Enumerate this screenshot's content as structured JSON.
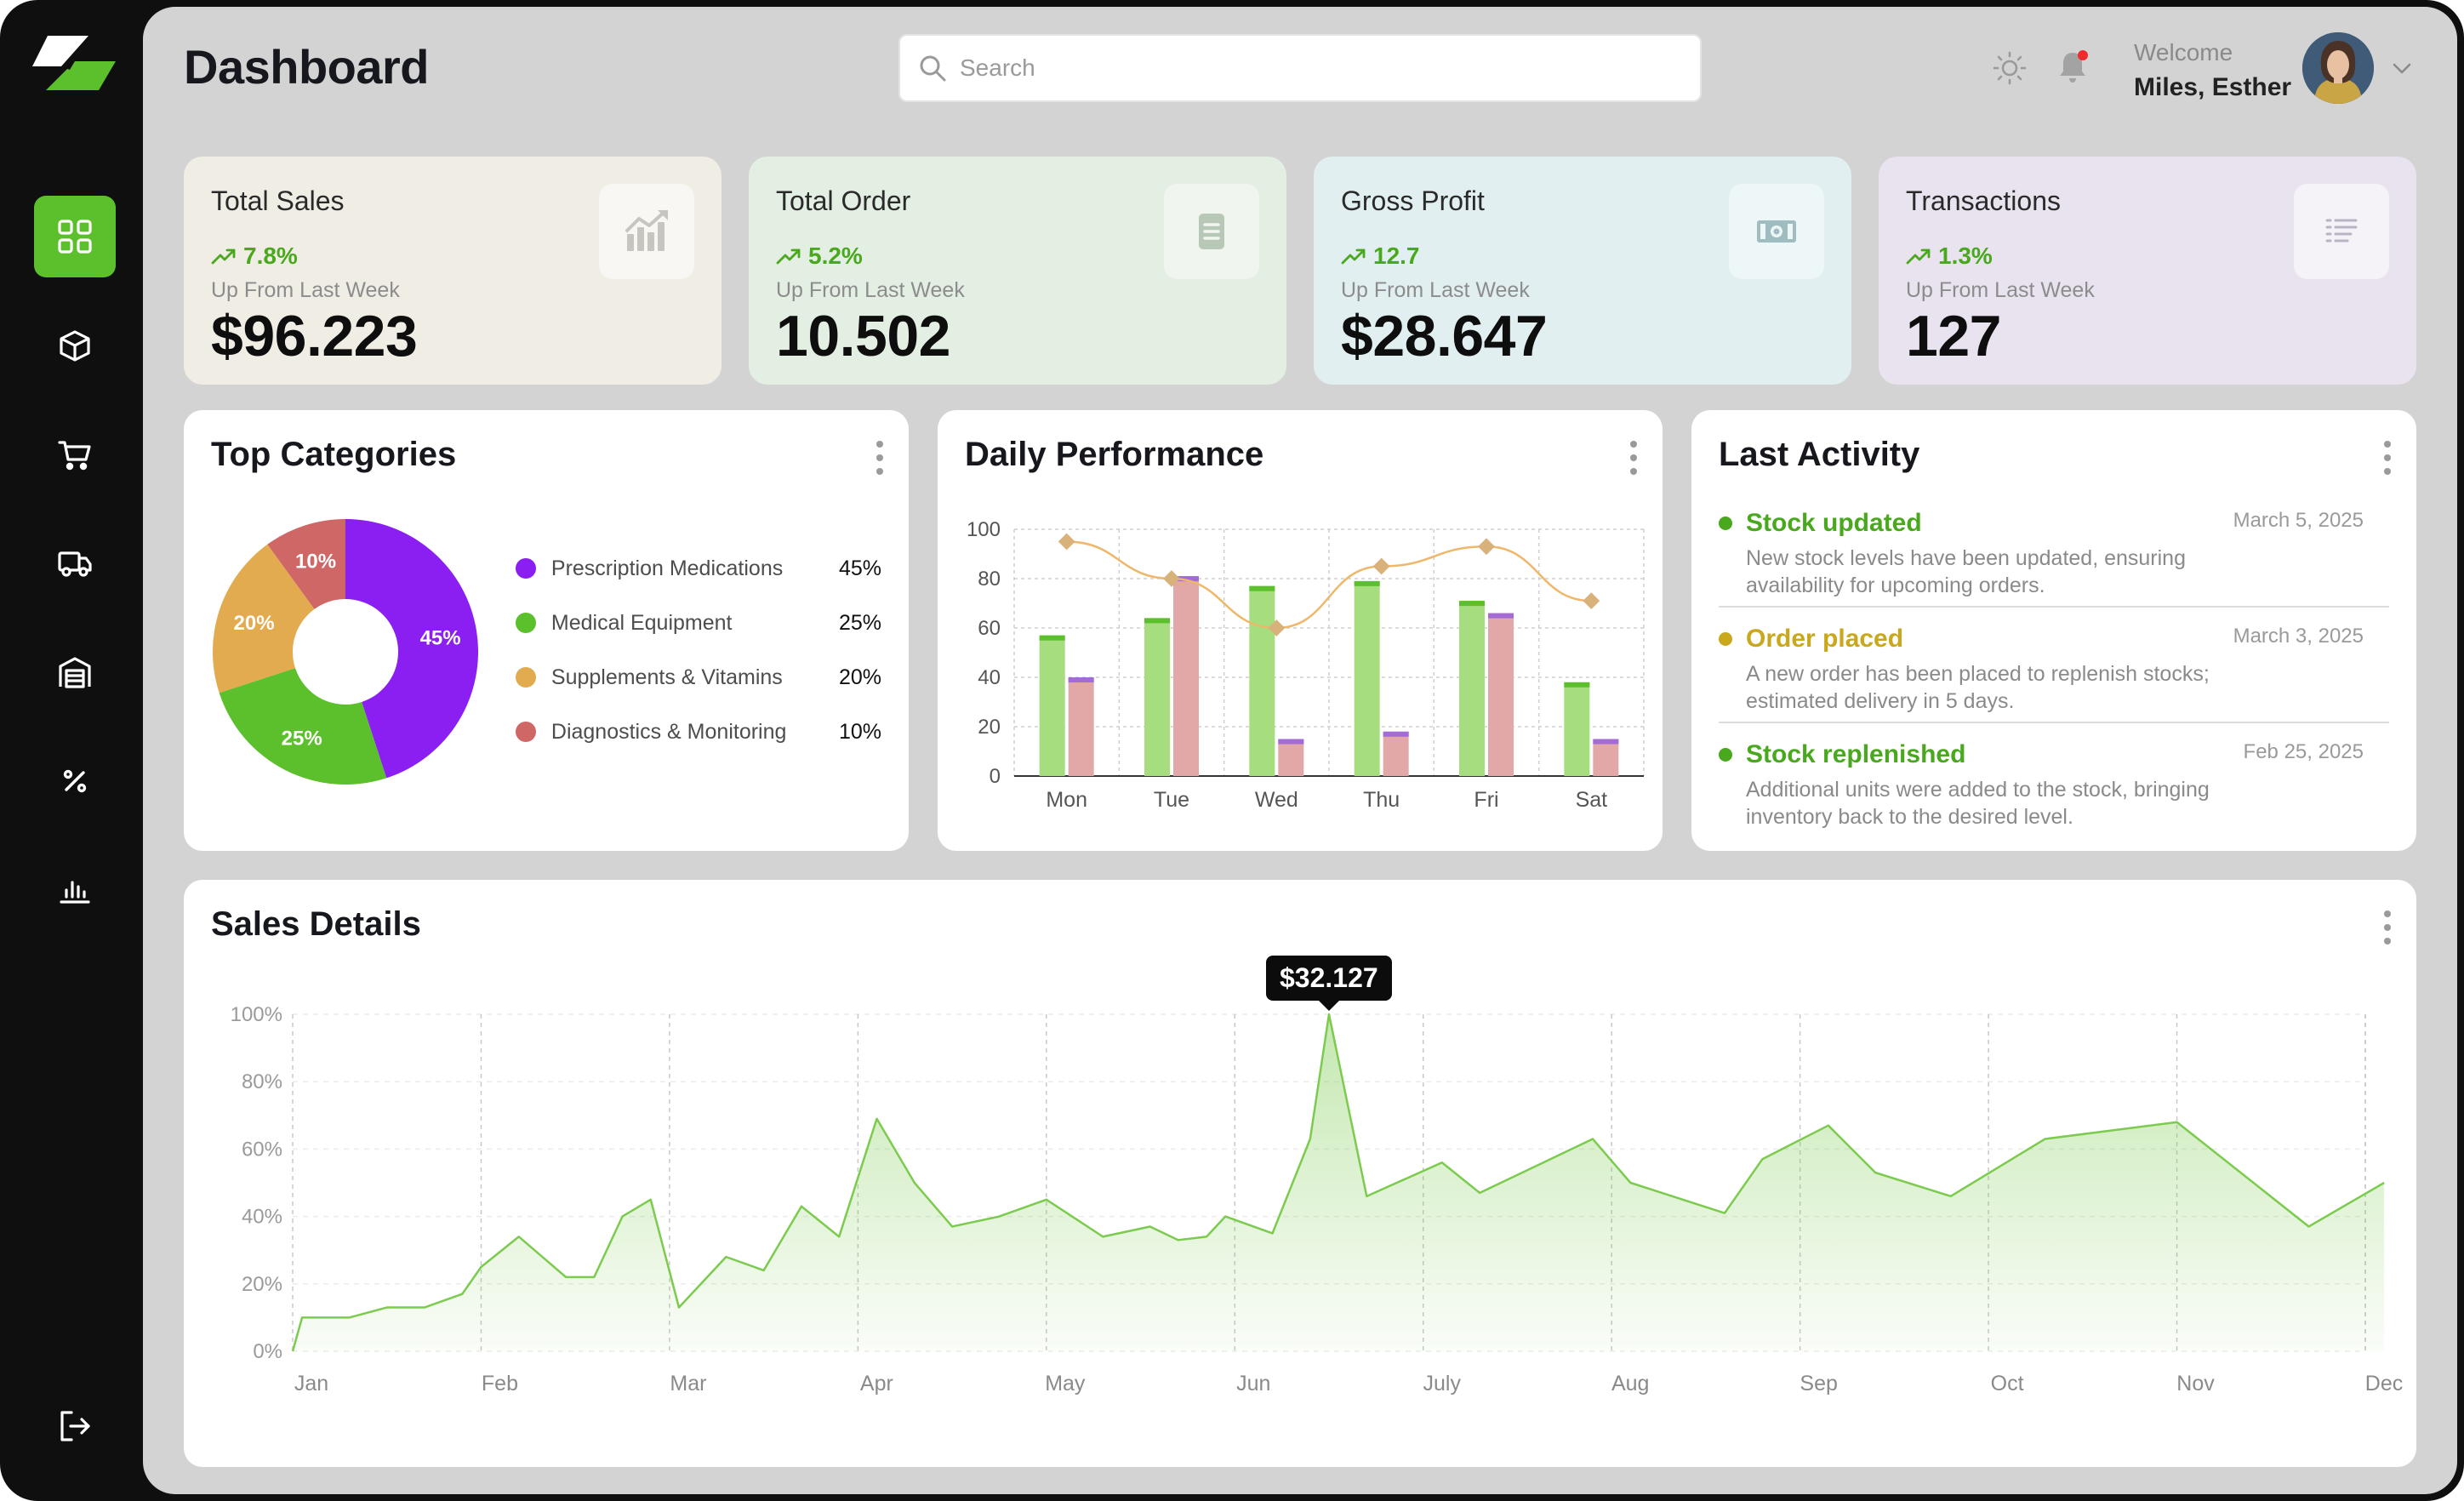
{
  "page": {
    "title": "Dashboard"
  },
  "search": {
    "placeholder": "Search"
  },
  "user": {
    "welcome": "Welcome",
    "name": "Miles, Esther"
  },
  "nav": [
    {
      "name": "sidebar-item-dashboard",
      "icon": "grid-icon",
      "active": true
    },
    {
      "name": "sidebar-item-products",
      "icon": "box-icon"
    },
    {
      "name": "sidebar-item-orders",
      "icon": "cart-icon"
    },
    {
      "name": "sidebar-item-delivery",
      "icon": "truck-icon"
    },
    {
      "name": "sidebar-item-warehouse",
      "icon": "warehouse-icon"
    },
    {
      "name": "sidebar-item-discounts",
      "icon": "percent-icon"
    },
    {
      "name": "sidebar-item-reports",
      "icon": "bar-chart-icon"
    },
    {
      "name": "sidebar-item-logout",
      "icon": "logout-icon"
    }
  ],
  "stats": [
    {
      "title": "Total Sales",
      "change": "7.8%",
      "sub": "Up From Last Week",
      "value": "$96.223",
      "bg": "#f0ede5",
      "icon": "chart-up-icon"
    },
    {
      "title": "Total Order",
      "change": "5.2%",
      "sub": "Up From Last Week",
      "value": "10.502",
      "bg": "#e3efe2",
      "icon": "document-icon"
    },
    {
      "title": "Gross Profit",
      "change": "12.7",
      "sub": "Up From Last Week",
      "value": "$28.647",
      "bg": "#e1eff0",
      "icon": "banknote-icon"
    },
    {
      "title": "Transactions",
      "change": "1.3%",
      "sub": "Up From Last Week",
      "value": "127",
      "bg": "#e9e3ef",
      "icon": "list-icon"
    }
  ],
  "top_categories": {
    "title": "Top Categories",
    "items": [
      {
        "label": "Prescription Medications",
        "value": "45%",
        "color": "#8b1ef0"
      },
      {
        "label": "Medical Equipment",
        "value": "25%",
        "color": "#5cc02d"
      },
      {
        "label": "Supplements & Vitamins",
        "value": "20%",
        "color": "#e2ab4f"
      },
      {
        "label": "Diagnostics & Monitoring",
        "value": "10%",
        "color": "#cf6766"
      }
    ]
  },
  "daily_performance": {
    "title": "Daily Performance"
  },
  "last_activity": {
    "title": "Last Activity",
    "items": [
      {
        "title": "Stock updated",
        "date": "March 5, 2025",
        "desc": "New stock levels have been updated, ensuring availability for upcoming orders.",
        "color": "#4aa81f"
      },
      {
        "title": "Order placed",
        "date": "March 3, 2025",
        "desc": "A new order has been placed to replenish stocks; estimated delivery in 5 days.",
        "color": "#c9a81d"
      },
      {
        "title": "Stock replenished",
        "date": "Feb 25, 2025",
        "desc": "Additional units were added to the stock, bringing inventory back to the desired level.",
        "color": "#4aa81f"
      }
    ]
  },
  "sales_details": {
    "title": "Sales Details",
    "tooltip": "$32.127"
  },
  "chart_data": [
    {
      "type": "pie",
      "title": "Top Categories",
      "categories": [
        "Prescription Medications",
        "Medical Equipment",
        "Supplements & Vitamins",
        "Diagnostics & Monitoring"
      ],
      "values": [
        45,
        25,
        20,
        10
      ],
      "colors": [
        "#8b1ef0",
        "#5cc02d",
        "#e2ab4f",
        "#cf6766"
      ],
      "donut": true
    },
    {
      "type": "bar",
      "title": "Daily Performance",
      "categories": [
        "Mon",
        "Tue",
        "Wed",
        "Thu",
        "Fri",
        "Sat"
      ],
      "series": [
        {
          "values": [
            57,
            64,
            77,
            79,
            71,
            38
          ],
          "color": "#a6dd7e",
          "cap": "#5cc02d"
        },
        {
          "values": [
            40,
            81,
            15,
            18,
            66,
            15
          ],
          "color": "#e2a7a7",
          "cap": "#a36bd4"
        }
      ],
      "line": {
        "values": [
          95,
          80,
          60,
          85,
          93,
          71
        ],
        "color": "#eeb76a",
        "marker": "#d8b27a"
      },
      "ylim": [
        0,
        100
      ],
      "yticks": [
        0,
        20,
        40,
        60,
        80,
        100
      ],
      "grid": true
    },
    {
      "type": "area",
      "title": "Sales Details",
      "xlabels": [
        "Jan",
        "Feb",
        "Mar",
        "Apr",
        "May",
        "Jun",
        "July",
        "Aug",
        "Sep",
        "Oct",
        "Nov",
        "Dec"
      ],
      "x": [
        0.0,
        0.05,
        0.3,
        0.5,
        0.7,
        0.9,
        1.0,
        1.2,
        1.45,
        1.6,
        1.75,
        1.9,
        2.05,
        2.3,
        2.5,
        2.7,
        2.9,
        3.1,
        3.3,
        3.5,
        3.75,
        4.0,
        4.3,
        4.55,
        4.7,
        4.85,
        4.95,
        5.2,
        5.4,
        5.5,
        5.7,
        6.1,
        6.3,
        6.9,
        7.1,
        7.6,
        7.8,
        8.15,
        8.4,
        8.8,
        9.3,
        10.0,
        10.7,
        11.1
      ],
      "y": [
        0.0,
        10.0,
        10.0,
        13.0,
        13.0,
        17.0,
        25.0,
        34.0,
        22.0,
        22.0,
        40.0,
        45.0,
        13.0,
        28.0,
        24.0,
        43.0,
        34.0,
        69.0,
        50.0,
        37.0,
        40.0,
        45.0,
        34.0,
        37.0,
        33.0,
        34.0,
        40.0,
        35.0,
        63.0,
        100.0,
        46.0,
        56.0,
        47.0,
        63.0,
        50.0,
        41.0,
        57.0,
        67.0,
        53.0,
        46.0,
        63.0,
        68.0,
        37.0,
        50.0
      ],
      "ylim": [
        0,
        100
      ],
      "yticks": [
        "0%",
        "20%",
        "40%",
        "60%",
        "80%",
        "100%"
      ],
      "peak": {
        "x": 5.5,
        "y": 100,
        "label": "$32.127"
      },
      "color": "#7ccb4f"
    }
  ]
}
